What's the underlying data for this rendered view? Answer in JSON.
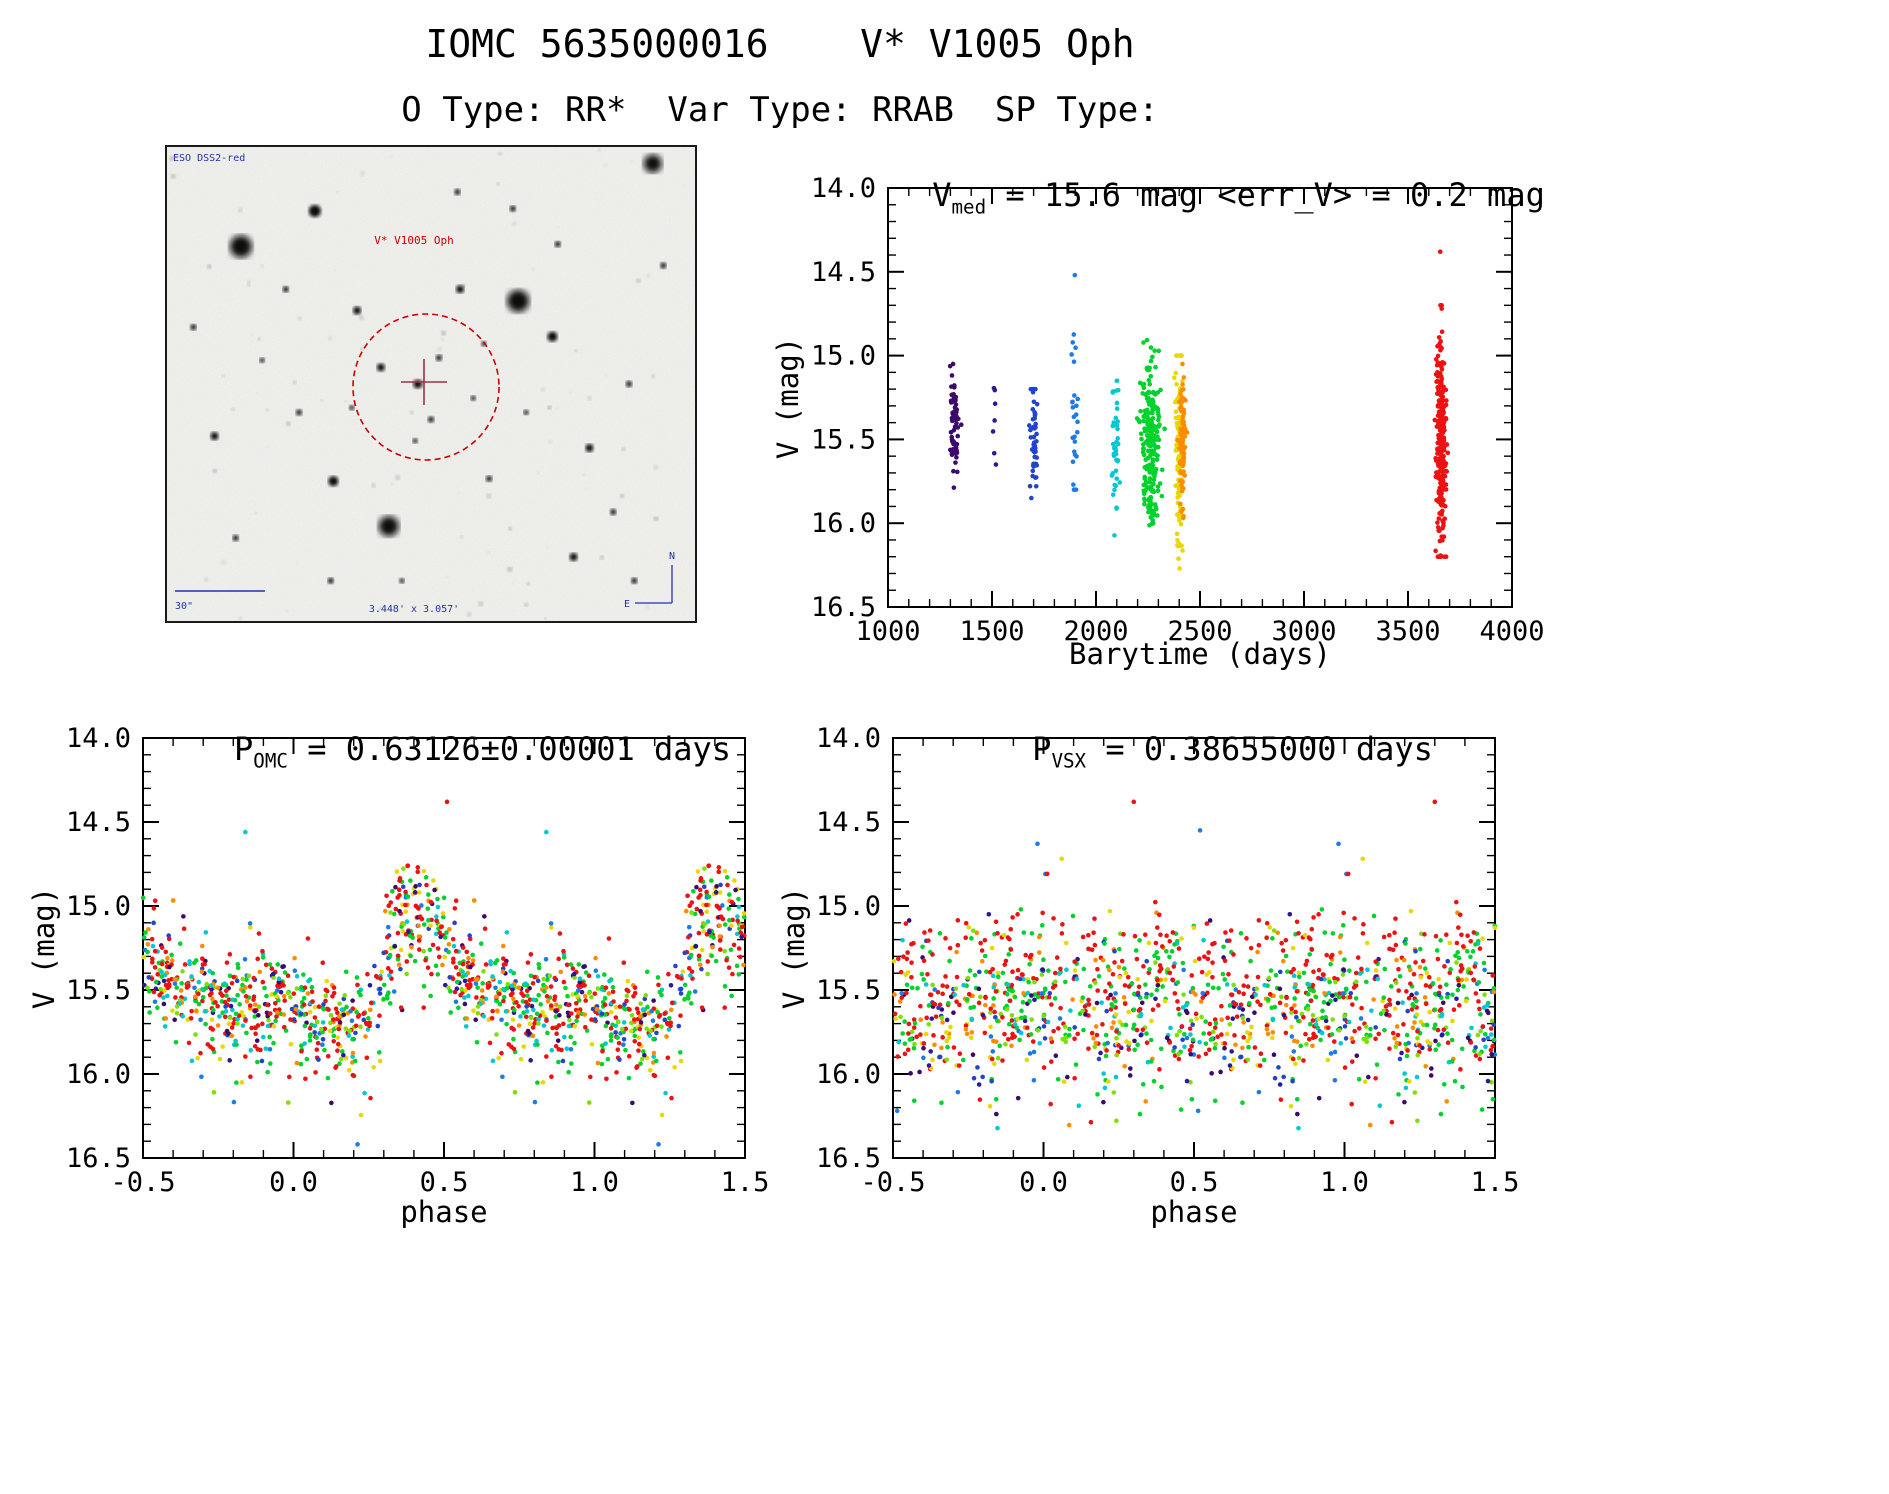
{
  "header": {
    "title": "IOMC 5635000016    V* V1005 Oph",
    "subtitle": "O Type: RR*  Var Type: RRAB  SP Type:"
  },
  "finding_chart": {
    "survey_label": "ESO DSS2-red",
    "target_label": "V* V1005 Oph",
    "scale_label": "30\"",
    "fov_label": "3.448' x 3.057'",
    "compass_north": "N",
    "compass_east": "E",
    "marker_color": "#cc0000",
    "annotation_color": "#2233aa",
    "stars": [
      [
        0.14,
        0.21,
        11
      ],
      [
        0.92,
        0.035,
        9
      ],
      [
        0.665,
        0.325,
        11
      ],
      [
        0.42,
        0.8,
        10
      ],
      [
        0.28,
        0.135,
        6
      ],
      [
        0.73,
        0.4,
        5
      ],
      [
        0.475,
        0.5,
        4.5
      ],
      [
        0.5,
        0.575,
        3
      ],
      [
        0.405,
        0.465,
        4
      ],
      [
        0.315,
        0.705,
        5
      ],
      [
        0.25,
        0.56,
        3
      ],
      [
        0.555,
        0.3,
        4
      ],
      [
        0.36,
        0.345,
        4
      ],
      [
        0.8,
        0.635,
        4
      ],
      [
        0.845,
        0.77,
        3
      ],
      [
        0.09,
        0.61,
        4
      ],
      [
        0.13,
        0.825,
        3
      ],
      [
        0.61,
        0.7,
        3
      ],
      [
        0.77,
        0.865,
        4
      ],
      [
        0.225,
        0.3,
        3
      ],
      [
        0.875,
        0.5,
        3
      ],
      [
        0.55,
        0.095,
        3
      ],
      [
        0.655,
        0.13,
        3
      ],
      [
        0.05,
        0.38,
        3
      ],
      [
        0.94,
        0.25,
        3
      ],
      [
        0.35,
        0.55,
        2.5
      ],
      [
        0.47,
        0.62,
        2.5
      ],
      [
        0.58,
        0.53,
        2.5
      ],
      [
        0.18,
        0.45,
        2.5
      ],
      [
        0.68,
        0.56,
        2.5
      ],
      [
        0.885,
        0.915,
        3
      ],
      [
        0.31,
        0.915,
        3
      ],
      [
        0.445,
        0.915,
        2.5
      ],
      [
        0.74,
        0.205,
        3
      ],
      [
        0.6,
        0.415,
        2.5
      ],
      [
        0.515,
        0.445,
        3
      ]
    ]
  },
  "chart_data": [
    {
      "id": "barytime_lightcurve",
      "type": "scatter",
      "title": {
        "pre": "V",
        "sub": "med",
        "post": " = 15.6 mag <err_V> = 0.2 mag"
      },
      "xlabel": "Barytime (days)",
      "ylabel": "V (mag)",
      "xlim": [
        1000,
        4000
      ],
      "ylim_top": 14.0,
      "ylim_bottom": 16.5,
      "xminor": 100,
      "yminor": 0.1,
      "xticks": [
        {
          "v": 1000,
          "label": "1000"
        },
        {
          "v": 1500,
          "label": "1500"
        },
        {
          "v": 2000,
          "label": "2000"
        },
        {
          "v": 2500,
          "label": "2500"
        },
        {
          "v": 3000,
          "label": "3000"
        },
        {
          "v": 3500,
          "label": "3500"
        },
        {
          "v": 4000,
          "label": "4000"
        }
      ],
      "yticks": [
        {
          "v": 14.0,
          "label": "14.0"
        },
        {
          "v": 14.5,
          "label": "14.5"
        },
        {
          "v": 15.0,
          "label": "15.0"
        },
        {
          "v": 15.5,
          "label": "15.5"
        },
        {
          "v": 16.0,
          "label": "16.0"
        },
        {
          "v": 16.5,
          "label": "16.5"
        }
      ],
      "clusters": [
        {
          "x": 1320,
          "sx": 10,
          "y": 15.42,
          "ys": 0.16,
          "n": 70,
          "c": "#3b0a6b",
          "ymin": 15.05,
          "ymax": 15.8
        },
        {
          "x": 1510,
          "sx": 5,
          "y": 15.4,
          "ys": 0.14,
          "n": 7,
          "c": "#2a1a9a",
          "ymin": 15.15,
          "ymax": 15.65
        },
        {
          "x": 1700,
          "sx": 9,
          "y": 15.5,
          "ys": 0.16,
          "n": 48,
          "c": "#2244cc",
          "ymin": 15.2,
          "ymax": 15.85
        },
        {
          "x": 1900,
          "sx": 7,
          "y": 15.35,
          "ys": 0.33,
          "n": 26,
          "c": "#1e7ae5",
          "ymin": 14.5,
          "ymax": 15.8
        },
        {
          "x": 2095,
          "sx": 9,
          "y": 15.58,
          "ys": 0.25,
          "n": 42,
          "c": "#00c8d2",
          "ymin": 15.15,
          "ymax": 16.15
        },
        {
          "x": 2265,
          "sx": 22,
          "y": 15.55,
          "ys": 0.27,
          "n": 230,
          "c": "#00d22c",
          "ymin": 14.9,
          "ymax": 16.2
        },
        {
          "x": 2400,
          "sx": 9,
          "y": 15.6,
          "ys": 0.3,
          "n": 110,
          "c": "#e8d800",
          "ymin": 15.0,
          "ymax": 16.28
        },
        {
          "x": 2415,
          "sx": 7,
          "y": 15.5,
          "ys": 0.2,
          "n": 90,
          "c": "#ff8c00",
          "ymin": 15.05,
          "ymax": 16.0
        },
        {
          "x": 3660,
          "sx": 11,
          "y": 15.5,
          "ys": 0.3,
          "n": 280,
          "c": "#ee1111",
          "ymin": 14.7,
          "ymax": 16.2
        }
      ],
      "outliers": [
        {
          "x": 3655,
          "y": 14.38,
          "c": "#ee1111"
        },
        {
          "x": 1898,
          "y": 14.52,
          "c": "#1e7ae5"
        },
        {
          "x": 3662,
          "y": 14.72,
          "c": "#ee1111"
        },
        {
          "x": 2402,
          "y": 16.27,
          "c": "#e8d800"
        }
      ]
    },
    {
      "id": "phase_fold_omc",
      "type": "scatter",
      "title": {
        "pre": "P",
        "sub": "OMC",
        "post": " = 0.63126±0.00001 days"
      },
      "xlabel": "phase",
      "ylabel": "V (mag)",
      "xlim": [
        -0.5,
        1.5
      ],
      "ylim_top": 14.0,
      "ylim_bottom": 16.5,
      "xminor": 0.1,
      "yminor": 0.1,
      "xticks": [
        {
          "v": -0.5,
          "label": "-0.5"
        },
        {
          "v": 0.0,
          "label": "0.0"
        },
        {
          "v": 0.5,
          "label": "0.5"
        },
        {
          "v": 1.0,
          "label": "1.0"
        },
        {
          "v": 1.5,
          "label": "1.5"
        }
      ],
      "yticks": [
        {
          "v": 14.0,
          "label": "14.0"
        },
        {
          "v": 14.5,
          "label": "14.5"
        },
        {
          "v": 15.0,
          "label": "15.0"
        },
        {
          "v": 15.5,
          "label": "15.5"
        },
        {
          "v": 16.0,
          "label": "16.0"
        },
        {
          "v": 16.5,
          "label": "16.5"
        }
      ],
      "fold": {
        "n": 720,
        "noise": 0.16,
        "amplitude": 1,
        "mean": 15.6,
        "template": [
          [
            0.0,
            15.6
          ],
          [
            0.05,
            15.64
          ],
          [
            0.1,
            15.68
          ],
          [
            0.15,
            15.71
          ],
          [
            0.2,
            15.73
          ],
          [
            0.26,
            15.74
          ],
          [
            0.29,
            15.5
          ],
          [
            0.32,
            15.22
          ],
          [
            0.36,
            15.06
          ],
          [
            0.4,
            15.02
          ],
          [
            0.44,
            15.06
          ],
          [
            0.48,
            15.16
          ],
          [
            0.52,
            15.3
          ],
          [
            0.58,
            15.42
          ],
          [
            0.64,
            15.5
          ],
          [
            0.7,
            15.54
          ],
          [
            0.76,
            15.57
          ],
          [
            0.82,
            15.58
          ],
          [
            0.88,
            15.59
          ],
          [
            0.94,
            15.6
          ],
          [
            1.0,
            15.6
          ]
        ],
        "palette": [
          {
            "c": "#3b0a6b",
            "w": 0.05
          },
          {
            "c": "#2a1a9a",
            "w": 0.03
          },
          {
            "c": "#2244cc",
            "w": 0.05
          },
          {
            "c": "#1e7ae5",
            "w": 0.04
          },
          {
            "c": "#00c8d2",
            "w": 0.07
          },
          {
            "c": "#00d22c",
            "w": 0.2
          },
          {
            "c": "#7ce000",
            "w": 0.06
          },
          {
            "c": "#e8d800",
            "w": 0.09
          },
          {
            "c": "#ff8c00",
            "w": 0.08
          },
          {
            "c": "#ee1111",
            "w": 0.33
          }
        ]
      },
      "outliers": [
        {
          "x": 0.51,
          "y": 14.38,
          "c": "#ee1111"
        },
        {
          "x": 0.84,
          "y": 14.56,
          "c": "#00c8d2"
        },
        {
          "x": -0.16,
          "y": 14.56,
          "c": "#00c8d2"
        },
        {
          "x": 0.38,
          "y": 14.76,
          "c": "#ee1111"
        },
        {
          "x": 1.38,
          "y": 14.76,
          "c": "#ee1111"
        }
      ]
    },
    {
      "id": "phase_fold_vsx",
      "type": "scatter",
      "title": {
        "pre": "P",
        "sub": "VSX",
        "post": " = 0.38655000 days"
      },
      "xlabel": "phase",
      "ylabel": "V (mag)",
      "xlim": [
        -0.5,
        1.5
      ],
      "ylim_top": 14.0,
      "ylim_bottom": 16.5,
      "xminor": 0.1,
      "yminor": 0.1,
      "xticks": [
        {
          "v": -0.5,
          "label": "-0.5"
        },
        {
          "v": 0.0,
          "label": "0.0"
        },
        {
          "v": 0.5,
          "label": "0.5"
        },
        {
          "v": 1.0,
          "label": "1.0"
        },
        {
          "v": 1.5,
          "label": "1.5"
        }
      ],
      "yticks": [
        {
          "v": 14.0,
          "label": "14.0"
        },
        {
          "v": 14.5,
          "label": "14.5"
        },
        {
          "v": 15.0,
          "label": "15.0"
        },
        {
          "v": 15.5,
          "label": "15.5"
        },
        {
          "v": 16.0,
          "label": "16.0"
        },
        {
          "v": 16.5,
          "label": "16.5"
        }
      ],
      "fold": {
        "n": 700,
        "noise": 0.26,
        "amplitude": 0,
        "mean": 15.62,
        "template": [
          [
            0.0,
            15.62
          ],
          [
            1.0,
            15.62
          ]
        ],
        "palette": [
          {
            "c": "#3b0a6b",
            "w": 0.05
          },
          {
            "c": "#2a1a9a",
            "w": 0.03
          },
          {
            "c": "#2244cc",
            "w": 0.05
          },
          {
            "c": "#1e7ae5",
            "w": 0.04
          },
          {
            "c": "#00c8d2",
            "w": 0.07
          },
          {
            "c": "#00d22c",
            "w": 0.2
          },
          {
            "c": "#7ce000",
            "w": 0.06
          },
          {
            "c": "#e8d800",
            "w": 0.09
          },
          {
            "c": "#ff8c00",
            "w": 0.08
          },
          {
            "c": "#ee1111",
            "w": 0.33,
            "off": -0.13
          }
        ]
      },
      "outliers": [
        {
          "x": 0.3,
          "y": 14.38,
          "c": "#ee1111"
        },
        {
          "x": 1.3,
          "y": 14.38,
          "c": "#ee1111"
        },
        {
          "x": 0.52,
          "y": 14.55,
          "c": "#1e7ae5"
        },
        {
          "x": -0.02,
          "y": 14.63,
          "c": "#1e7ae5"
        },
        {
          "x": 0.98,
          "y": 14.63,
          "c": "#1e7ae5"
        }
      ]
    }
  ]
}
